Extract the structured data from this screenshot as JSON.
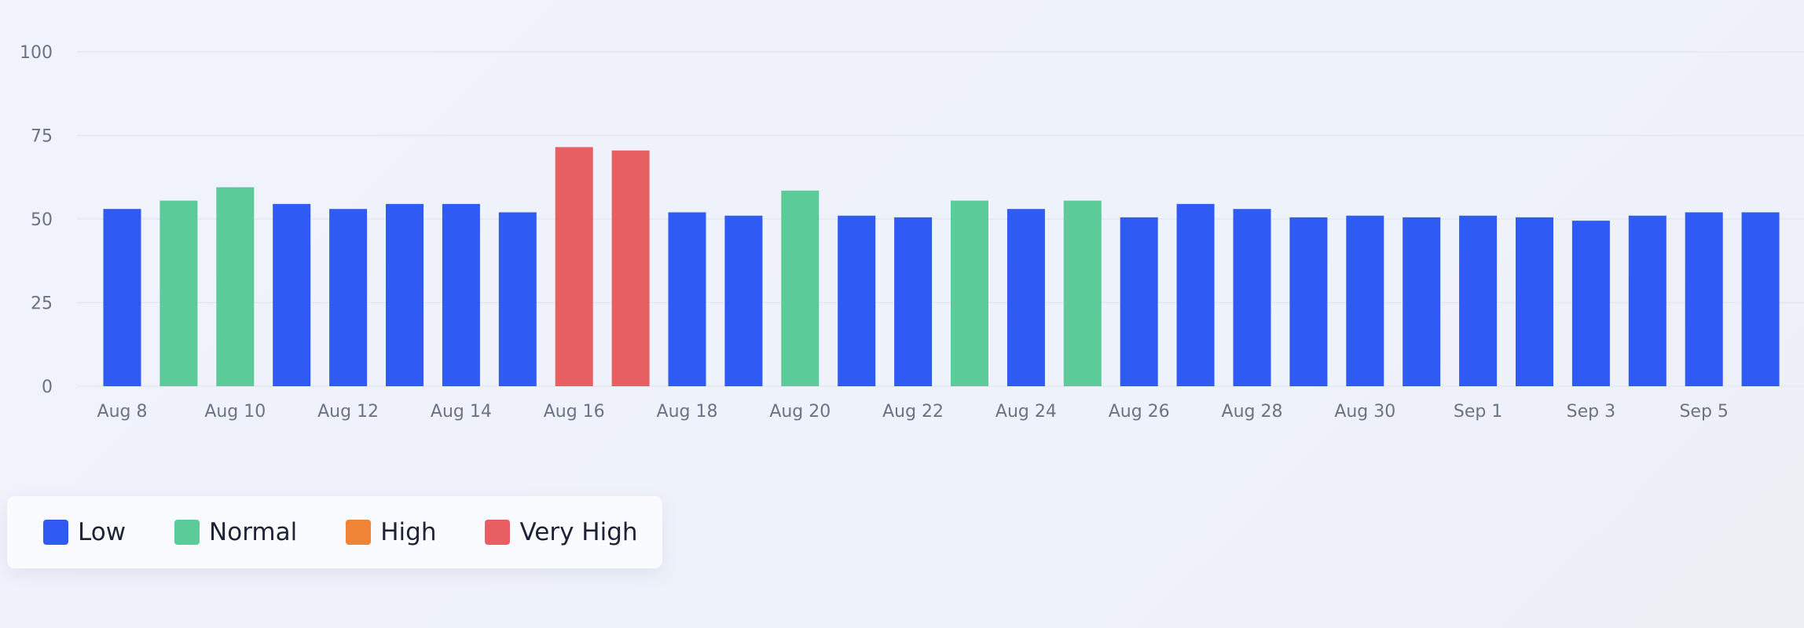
{
  "chart_data": {
    "type": "bar",
    "title": "",
    "xlabel": "",
    "ylabel": "",
    "ylim": [
      0,
      100
    ],
    "yticks": [
      "0",
      "25",
      "50",
      "75",
      "100"
    ],
    "grid": true,
    "x_tick_labels": [
      "Aug 8",
      "Aug 10",
      "Aug 12",
      "Aug 14",
      "Aug 16",
      "Aug 18",
      "Aug 20",
      "Aug 22",
      "Aug 24",
      "Aug 26",
      "Aug 28",
      "Aug 30",
      "Sep 1",
      "Sep 3",
      "Sep 5"
    ],
    "categories": [
      "Aug 8",
      "Aug 9",
      "Aug 10",
      "Aug 11",
      "Aug 12",
      "Aug 13",
      "Aug 14",
      "Aug 15",
      "Aug 16",
      "Aug 17",
      "Aug 18",
      "Aug 19",
      "Aug 20",
      "Aug 21",
      "Aug 22",
      "Aug 23",
      "Aug 24",
      "Aug 25",
      "Aug 26",
      "Aug 27",
      "Aug 28",
      "Aug 29",
      "Aug 30",
      "Aug 31",
      "Sep 1",
      "Sep 2",
      "Sep 3",
      "Sep 4",
      "Sep 5",
      "Sep 6"
    ],
    "values": [
      53,
      55.5,
      59.5,
      54.5,
      53,
      54.5,
      54.5,
      52,
      71.5,
      70.5,
      52,
      51,
      58.5,
      51,
      50.5,
      55.5,
      53,
      55.5,
      50.5,
      54.5,
      53,
      50.5,
      51,
      50.5,
      51,
      50.5,
      49.5,
      51,
      52,
      52
    ],
    "levels": [
      "Low",
      "Normal",
      "Normal",
      "Low",
      "Low",
      "Low",
      "Low",
      "Low",
      "Very High",
      "Very High",
      "Low",
      "Low",
      "Normal",
      "Low",
      "Low",
      "Normal",
      "Low",
      "Normal",
      "Low",
      "Low",
      "Low",
      "Low",
      "Low",
      "Low",
      "Low",
      "Low",
      "Low",
      "Low",
      "Low",
      "Low"
    ],
    "legend_position": "bottom-left"
  },
  "legend": {
    "items": [
      {
        "label": "Low",
        "color": "#2f5af3"
      },
      {
        "label": "Normal",
        "color": "#5ccb9a"
      },
      {
        "label": "High",
        "color": "#ef8336"
      },
      {
        "label": "Very High",
        "color": "#e85f63"
      }
    ]
  }
}
